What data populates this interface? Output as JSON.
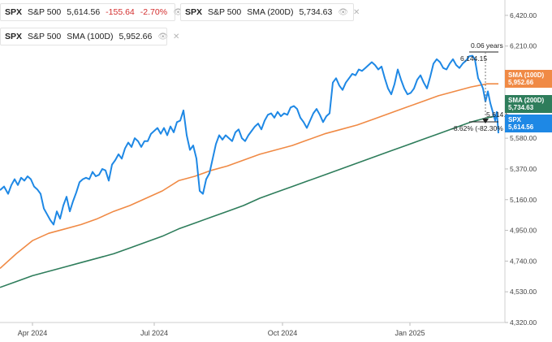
{
  "legend": {
    "spx": {
      "ticker": "SPX",
      "name": "S&P 500",
      "value": "5,614.56",
      "change": "-155.64",
      "pct": "-2.70%",
      "color": "#1e88e5"
    },
    "sma200": {
      "ticker": "SPX",
      "name": "S&P 500",
      "label": "SMA (200D)",
      "value": "5,734.63",
      "color": "#2e7d5b"
    },
    "sma100": {
      "ticker": "SPX",
      "name": "S&P 500",
      "label": "SMA (100D)",
      "value": "5,952.66",
      "color": "#f08a45"
    },
    "icons": [
      "eye-icon",
      "close-icon"
    ]
  },
  "badges": {
    "sma100": {
      "label": "SMA (100D)",
      "value": "5,952.66",
      "color": "#f08a45"
    },
    "sma200": {
      "label": "SMA (200D)",
      "value": "5,734.63",
      "color": "#2e7d5b"
    },
    "spx": {
      "label": "SPX",
      "value": "5,614.56",
      "color": "#1e88e5"
    }
  },
  "measure": {
    "span": "0.06 years",
    "high": "6,144.15",
    "low": "5,614.5",
    "change": "-8.62% (-82.30% C"
  },
  "chart_data": {
    "type": "line",
    "x_labels": [
      "Apr 2024",
      "Jul 2024",
      "Oct 2024",
      "Jan 2025"
    ],
    "y_ticks": [
      "6,420.00",
      "6,210.00",
      "6,000.00",
      "5,790.00",
      "5,580.00",
      "5,370.00",
      "5,160.00",
      "4,950.00",
      "4,740.00",
      "4,530.00",
      "4,320.00"
    ],
    "ylim": [
      4320,
      6525
    ],
    "series": [
      {
        "name": "SPX",
        "color": "#1e88e5",
        "points": [
          [
            0,
            5225
          ],
          [
            5,
            5250
          ],
          [
            10,
            5200
          ],
          [
            14,
            5260
          ],
          [
            18,
            5300
          ],
          [
            22,
            5260
          ],
          [
            26,
            5310
          ],
          [
            30,
            5290
          ],
          [
            34,
            5320
          ],
          [
            38,
            5300
          ],
          [
            42,
            5250
          ],
          [
            46,
            5230
          ],
          [
            50,
            5200
          ],
          [
            54,
            5100
          ],
          [
            58,
            5060
          ],
          [
            62,
            5020
          ],
          [
            66,
            4990
          ],
          [
            70,
            5080
          ],
          [
            74,
            5030
          ],
          [
            78,
            5120
          ],
          [
            82,
            5180
          ],
          [
            86,
            5080
          ],
          [
            90,
            5150
          ],
          [
            94,
            5210
          ],
          [
            98,
            5280
          ],
          [
            102,
            5300
          ],
          [
            106,
            5310
          ],
          [
            110,
            5300
          ],
          [
            114,
            5350
          ],
          [
            118,
            5320
          ],
          [
            122,
            5330
          ],
          [
            126,
            5370
          ],
          [
            130,
            5360
          ],
          [
            134,
            5290
          ],
          [
            138,
            5400
          ],
          [
            142,
            5430
          ],
          [
            146,
            5470
          ],
          [
            150,
            5440
          ],
          [
            154,
            5510
          ],
          [
            158,
            5550
          ],
          [
            162,
            5520
          ],
          [
            166,
            5580
          ],
          [
            170,
            5560
          ],
          [
            174,
            5520
          ],
          [
            178,
            5560
          ],
          [
            182,
            5560
          ],
          [
            186,
            5610
          ],
          [
            190,
            5630
          ],
          [
            194,
            5650
          ],
          [
            198,
            5610
          ],
          [
            202,
            5650
          ],
          [
            206,
            5600
          ],
          [
            210,
            5660
          ],
          [
            214,
            5620
          ],
          [
            218,
            5690
          ],
          [
            222,
            5700
          ],
          [
            226,
            5770
          ],
          [
            230,
            5600
          ],
          [
            234,
            5500
          ],
          [
            238,
            5530
          ],
          [
            242,
            5440
          ],
          [
            246,
            5220
          ],
          [
            250,
            5200
          ],
          [
            254,
            5300
          ],
          [
            258,
            5340
          ],
          [
            262,
            5440
          ],
          [
            266,
            5540
          ],
          [
            270,
            5600
          ],
          [
            274,
            5570
          ],
          [
            278,
            5600
          ],
          [
            282,
            5580
          ],
          [
            286,
            5560
          ],
          [
            290,
            5620
          ],
          [
            294,
            5640
          ],
          [
            298,
            5580
          ],
          [
            302,
            5560
          ],
          [
            306,
            5600
          ],
          [
            310,
            5630
          ],
          [
            314,
            5660
          ],
          [
            318,
            5680
          ],
          [
            322,
            5640
          ],
          [
            326,
            5700
          ],
          [
            330,
            5740
          ],
          [
            334,
            5750
          ],
          [
            338,
            5720
          ],
          [
            342,
            5760
          ],
          [
            346,
            5730
          ],
          [
            350,
            5750
          ],
          [
            354,
            5740
          ],
          [
            358,
            5790
          ],
          [
            362,
            5800
          ],
          [
            366,
            5780
          ],
          [
            370,
            5720
          ],
          [
            374,
            5690
          ],
          [
            378,
            5650
          ],
          [
            382,
            5700
          ],
          [
            386,
            5750
          ],
          [
            390,
            5780
          ],
          [
            394,
            5740
          ],
          [
            398,
            5690
          ],
          [
            402,
            5730
          ],
          [
            406,
            5750
          ],
          [
            410,
            5960
          ],
          [
            414,
            5990
          ],
          [
            418,
            5940
          ],
          [
            422,
            5910
          ],
          [
            426,
            5960
          ],
          [
            430,
            5990
          ],
          [
            434,
            6020
          ],
          [
            438,
            6010
          ],
          [
            442,
            6050
          ],
          [
            446,
            6040
          ],
          [
            450,
            6060
          ],
          [
            454,
            6080
          ],
          [
            458,
            6100
          ],
          [
            462,
            6080
          ],
          [
            466,
            6050
          ],
          [
            470,
            6070
          ],
          [
            474,
            5990
          ],
          [
            478,
            5920
          ],
          [
            482,
            5880
          ],
          [
            486,
            5950
          ],
          [
            490,
            6050
          ],
          [
            494,
            5980
          ],
          [
            498,
            5920
          ],
          [
            502,
            5880
          ],
          [
            506,
            5890
          ],
          [
            510,
            5920
          ],
          [
            514,
            5980
          ],
          [
            518,
            6010
          ],
          [
            522,
            5960
          ],
          [
            526,
            5920
          ],
          [
            530,
            6000
          ],
          [
            534,
            6090
          ],
          [
            538,
            6120
          ],
          [
            542,
            6100
          ],
          [
            546,
            6060
          ],
          [
            550,
            6050
          ],
          [
            554,
            6090
          ],
          [
            558,
            6120
          ],
          [
            562,
            6080
          ],
          [
            566,
            6060
          ],
          [
            570,
            6090
          ],
          [
            574,
            6110
          ],
          [
            578,
            6140
          ],
          [
            582,
            6144
          ],
          [
            585,
            6120
          ],
          [
            589,
            5990
          ],
          [
            592,
            5960
          ],
          [
            595,
            5920
          ],
          [
            598,
            5830
          ],
          [
            601,
            5900
          ],
          [
            604,
            5820
          ],
          [
            607,
            5760
          ],
          [
            610,
            5700
          ],
          [
            612,
            5760
          ],
          [
            614,
            5614
          ]
        ]
      },
      {
        "name": "SMA (100D)",
        "color": "#f08a45",
        "points": [
          [
            0,
            4690
          ],
          [
            20,
            4790
          ],
          [
            40,
            4880
          ],
          [
            60,
            4930
          ],
          [
            80,
            4960
          ],
          [
            100,
            4990
          ],
          [
            120,
            5030
          ],
          [
            140,
            5080
          ],
          [
            160,
            5120
          ],
          [
            180,
            5170
          ],
          [
            200,
            5220
          ],
          [
            220,
            5290
          ],
          [
            240,
            5320
          ],
          [
            260,
            5360
          ],
          [
            280,
            5390
          ],
          [
            300,
            5430
          ],
          [
            320,
            5470
          ],
          [
            340,
            5500
          ],
          [
            360,
            5530
          ],
          [
            380,
            5570
          ],
          [
            400,
            5610
          ],
          [
            420,
            5640
          ],
          [
            440,
            5670
          ],
          [
            460,
            5710
          ],
          [
            480,
            5750
          ],
          [
            500,
            5790
          ],
          [
            520,
            5830
          ],
          [
            540,
            5870
          ],
          [
            560,
            5900
          ],
          [
            580,
            5930
          ],
          [
            600,
            5952
          ],
          [
            614,
            5952
          ]
        ]
      },
      {
        "name": "SMA (200D)",
        "color": "#2e7d5b",
        "points": [
          [
            0,
            4560
          ],
          [
            20,
            4600
          ],
          [
            40,
            4640
          ],
          [
            60,
            4670
          ],
          [
            80,
            4700
          ],
          [
            100,
            4730
          ],
          [
            120,
            4760
          ],
          [
            140,
            4790
          ],
          [
            160,
            4830
          ],
          [
            180,
            4870
          ],
          [
            200,
            4910
          ],
          [
            220,
            4960
          ],
          [
            240,
            5000
          ],
          [
            260,
            5040
          ],
          [
            280,
            5080
          ],
          [
            300,
            5120
          ],
          [
            320,
            5170
          ],
          [
            340,
            5210
          ],
          [
            360,
            5250
          ],
          [
            380,
            5290
          ],
          [
            400,
            5330
          ],
          [
            420,
            5370
          ],
          [
            440,
            5410
          ],
          [
            460,
            5450
          ],
          [
            480,
            5490
          ],
          [
            500,
            5530
          ],
          [
            520,
            5570
          ],
          [
            540,
            5610
          ],
          [
            560,
            5650
          ],
          [
            580,
            5690
          ],
          [
            600,
            5720
          ],
          [
            614,
            5734
          ]
        ]
      }
    ]
  }
}
